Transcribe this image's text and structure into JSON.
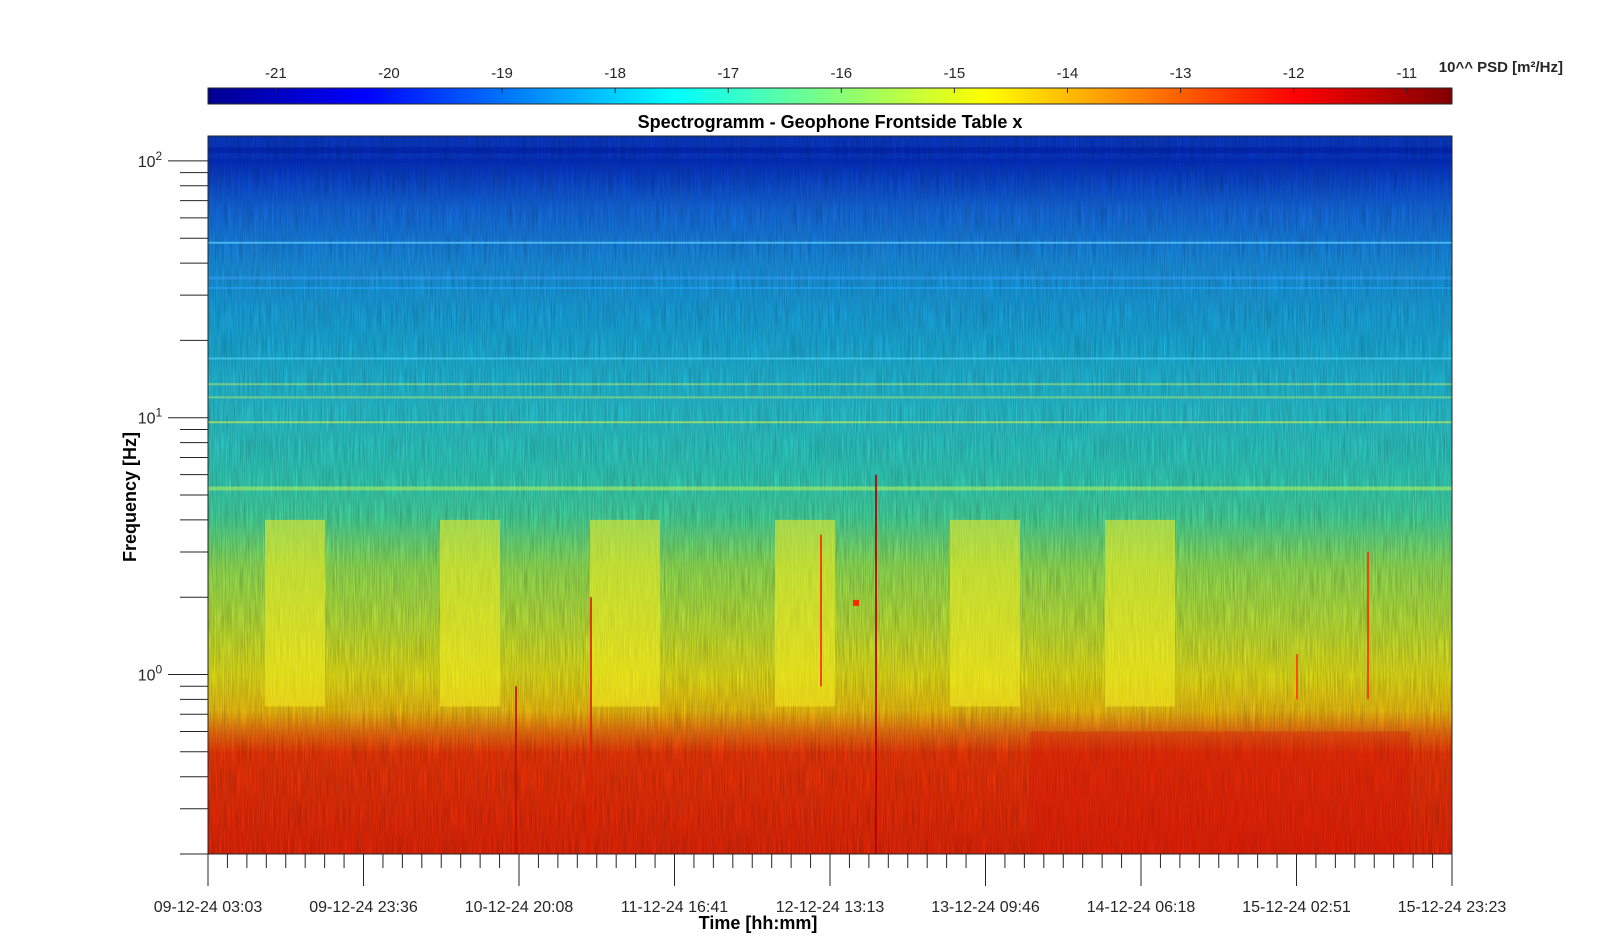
{
  "chart_data": {
    "type": "heatmap",
    "title": "Spectrogramm - Geophone Frontside Table x",
    "xlabel": "Time [hh:mm]",
    "ylabel": "Frequency [Hz]",
    "yscale": "log",
    "ylim": [
      0.2,
      125
    ],
    "x_ticks": [
      "09-12-24 03:03",
      "09-12-24 23:36",
      "10-12-24 20:08",
      "11-12-24 16:41",
      "12-12-24 13:13",
      "13-12-24 09:46",
      "14-12-24 06:18",
      "15-12-24 02:51",
      "15-12-24 23:23"
    ],
    "y_ticks": [
      {
        "base": "10",
        "exp": "0",
        "value": 1
      },
      {
        "base": "10",
        "exp": "1",
        "value": 10
      },
      {
        "base": "10",
        "exp": "2",
        "value": 100
      }
    ],
    "colorbar": {
      "label": "10^^ PSD [m²/Hz]",
      "ticks": [
        "-21",
        "-20",
        "-19",
        "-18",
        "-17",
        "-16",
        "-15",
        "-14",
        "-13",
        "-12",
        "-11"
      ],
      "range": [
        -21.6,
        -10.6
      ],
      "colormap": "jet"
    },
    "psd_profile": {
      "description_values_log10": [
        {
          "freq": 0.2,
          "psd": -12.1
        },
        {
          "freq": 0.5,
          "psd": -12.1
        },
        {
          "freq": 0.75,
          "psd": -13.3
        },
        {
          "freq": 1.0,
          "psd": -14.2
        },
        {
          "freq": 2.0,
          "psd": -14.6
        },
        {
          "freq": 4.0,
          "psd": -15.6
        },
        {
          "freq": 10.0,
          "psd": -16.3
        },
        {
          "freq": 30.0,
          "psd": -17.7
        },
        {
          "freq": 60.0,
          "psd": -19.2
        },
        {
          "freq": 100.0,
          "psd": -20.4
        },
        {
          "freq": 125.0,
          "psd": -20.1
        }
      ]
    }
  }
}
